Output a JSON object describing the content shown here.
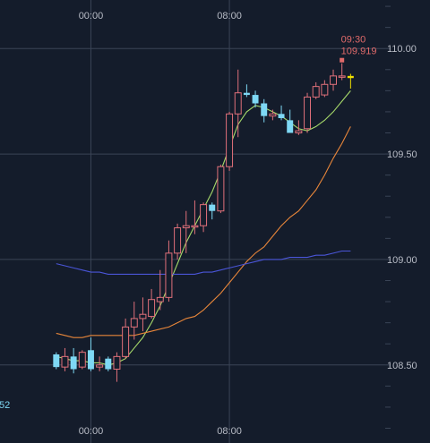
{
  "chart_data": {
    "type": "candlestick",
    "time_labels": [
      "00:00",
      "08:00"
    ],
    "y_ticks": [
      {
        "value": 110.0,
        "label": "110.00"
      },
      {
        "value": 109.5,
        "label": "109.50"
      },
      {
        "value": 109.0,
        "label": "109.00"
      },
      {
        "value": 108.5,
        "label": "108.50"
      }
    ],
    "ylim": [
      108.13,
      110.23
    ],
    "x_index_range": [
      -6.5,
      38
    ],
    "vertical_gridlines_at_index": [
      4,
      20
    ],
    "partial_label": "52",
    "last_bar_annotation": {
      "time": "09:30",
      "price": "109.919"
    },
    "colors": {
      "background": "#141c2b",
      "grid": "#3a4456",
      "up_candle": "#e0707a",
      "down_candle": "#7ed8f4",
      "last_candle": "#f0e000",
      "ma_short": "#a6d96a",
      "ma_mid": "#e8863a",
      "ma_long": "#4a55d8",
      "annotation": "#e06a6a",
      "axis_text": "#b8bcc6",
      "partial_label": "#7ed8f4"
    },
    "candles": [
      {
        "o": 108.55,
        "h": 108.56,
        "l": 108.48,
        "c": 108.49
      },
      {
        "o": 108.49,
        "h": 108.58,
        "l": 108.47,
        "c": 108.54
      },
      {
        "o": 108.54,
        "h": 108.58,
        "l": 108.46,
        "c": 108.48
      },
      {
        "o": 108.49,
        "h": 108.57,
        "l": 108.48,
        "c": 108.56
      },
      {
        "o": 108.57,
        "h": 108.63,
        "l": 108.47,
        "c": 108.48
      },
      {
        "o": 108.49,
        "h": 108.54,
        "l": 108.47,
        "c": 108.5
      },
      {
        "o": 108.53,
        "h": 108.54,
        "l": 108.47,
        "c": 108.48
      },
      {
        "o": 108.48,
        "h": 108.56,
        "l": 108.42,
        "c": 108.54
      },
      {
        "o": 108.54,
        "h": 108.72,
        "l": 108.53,
        "c": 108.68
      },
      {
        "o": 108.68,
        "h": 108.8,
        "l": 108.62,
        "c": 108.72
      },
      {
        "o": 108.72,
        "h": 108.82,
        "l": 108.66,
        "c": 108.74
      },
      {
        "o": 108.73,
        "h": 108.86,
        "l": 108.72,
        "c": 108.81
      },
      {
        "o": 108.8,
        "h": 108.95,
        "l": 108.76,
        "c": 108.82
      },
      {
        "o": 108.82,
        "h": 109.09,
        "l": 108.8,
        "c": 109.03
      },
      {
        "o": 109.03,
        "h": 109.17,
        "l": 109.0,
        "c": 109.15
      },
      {
        "o": 109.15,
        "h": 109.23,
        "l": 109.03,
        "c": 109.16
      },
      {
        "o": 109.16,
        "h": 109.28,
        "l": 109.12,
        "c": 109.16
      },
      {
        "o": 109.16,
        "h": 109.27,
        "l": 109.13,
        "c": 109.26
      },
      {
        "o": 109.26,
        "h": 109.27,
        "l": 109.19,
        "c": 109.23
      },
      {
        "o": 109.23,
        "h": 109.45,
        "l": 109.22,
        "c": 109.44
      },
      {
        "o": 109.44,
        "h": 109.7,
        "l": 109.42,
        "c": 109.69
      },
      {
        "o": 109.69,
        "h": 109.9,
        "l": 109.58,
        "c": 109.79
      },
      {
        "o": 109.79,
        "h": 109.83,
        "l": 109.77,
        "c": 109.78
      },
      {
        "o": 109.78,
        "h": 109.8,
        "l": 109.72,
        "c": 109.74
      },
      {
        "o": 109.74,
        "h": 109.76,
        "l": 109.65,
        "c": 109.68
      },
      {
        "o": 109.68,
        "h": 109.71,
        "l": 109.66,
        "c": 109.69
      },
      {
        "o": 109.69,
        "h": 109.73,
        "l": 109.66,
        "c": 109.67
      },
      {
        "o": 109.66,
        "h": 109.71,
        "l": 109.6,
        "c": 109.6
      },
      {
        "o": 109.6,
        "h": 109.66,
        "l": 109.59,
        "c": 109.61
      },
      {
        "o": 109.62,
        "h": 109.79,
        "l": 109.6,
        "c": 109.77
      },
      {
        "o": 109.77,
        "h": 109.84,
        "l": 109.76,
        "c": 109.82
      },
      {
        "o": 109.78,
        "h": 109.85,
        "l": 109.77,
        "c": 109.83
      },
      {
        "o": 109.83,
        "h": 109.9,
        "l": 109.8,
        "c": 109.87
      },
      {
        "o": 109.87,
        "h": 109.93,
        "l": 109.85,
        "c": 109.87
      },
      {
        "o": 109.87,
        "h": 109.88,
        "l": 109.81,
        "c": 109.86
      }
    ],
    "series": [
      {
        "key": "ma_short",
        "values": [
          108.54,
          108.53,
          108.52,
          108.52,
          108.51,
          108.51,
          108.5,
          108.51,
          108.53,
          108.58,
          108.63,
          108.7,
          108.78,
          108.88,
          108.98,
          109.08,
          109.16,
          109.24,
          109.32,
          109.42,
          109.53,
          109.64,
          109.7,
          109.73,
          109.72,
          109.7,
          109.68,
          109.65,
          109.62,
          109.61,
          109.63,
          109.66,
          109.7,
          109.75,
          109.8
        ]
      },
      {
        "key": "ma_mid",
        "values": [
          108.65,
          108.64,
          108.63,
          108.63,
          108.64,
          108.64,
          108.64,
          108.64,
          108.64,
          108.64,
          108.65,
          108.66,
          108.67,
          108.68,
          108.7,
          108.72,
          108.73,
          108.76,
          108.8,
          108.84,
          108.89,
          108.94,
          108.99,
          109.03,
          109.06,
          109.11,
          109.16,
          109.2,
          109.23,
          109.28,
          109.33,
          109.4,
          109.48,
          109.55,
          109.63
        ]
      },
      {
        "key": "ma_long",
        "values": [
          108.98,
          108.97,
          108.96,
          108.95,
          108.94,
          108.94,
          108.93,
          108.93,
          108.93,
          108.93,
          108.93,
          108.93,
          108.93,
          108.93,
          108.93,
          108.93,
          108.93,
          108.94,
          108.94,
          108.95,
          108.96,
          108.97,
          108.98,
          108.99,
          109.0,
          109.0,
          109.0,
          109.01,
          109.01,
          109.01,
          109.02,
          109.02,
          109.03,
          109.04,
          109.04
        ]
      }
    ]
  }
}
